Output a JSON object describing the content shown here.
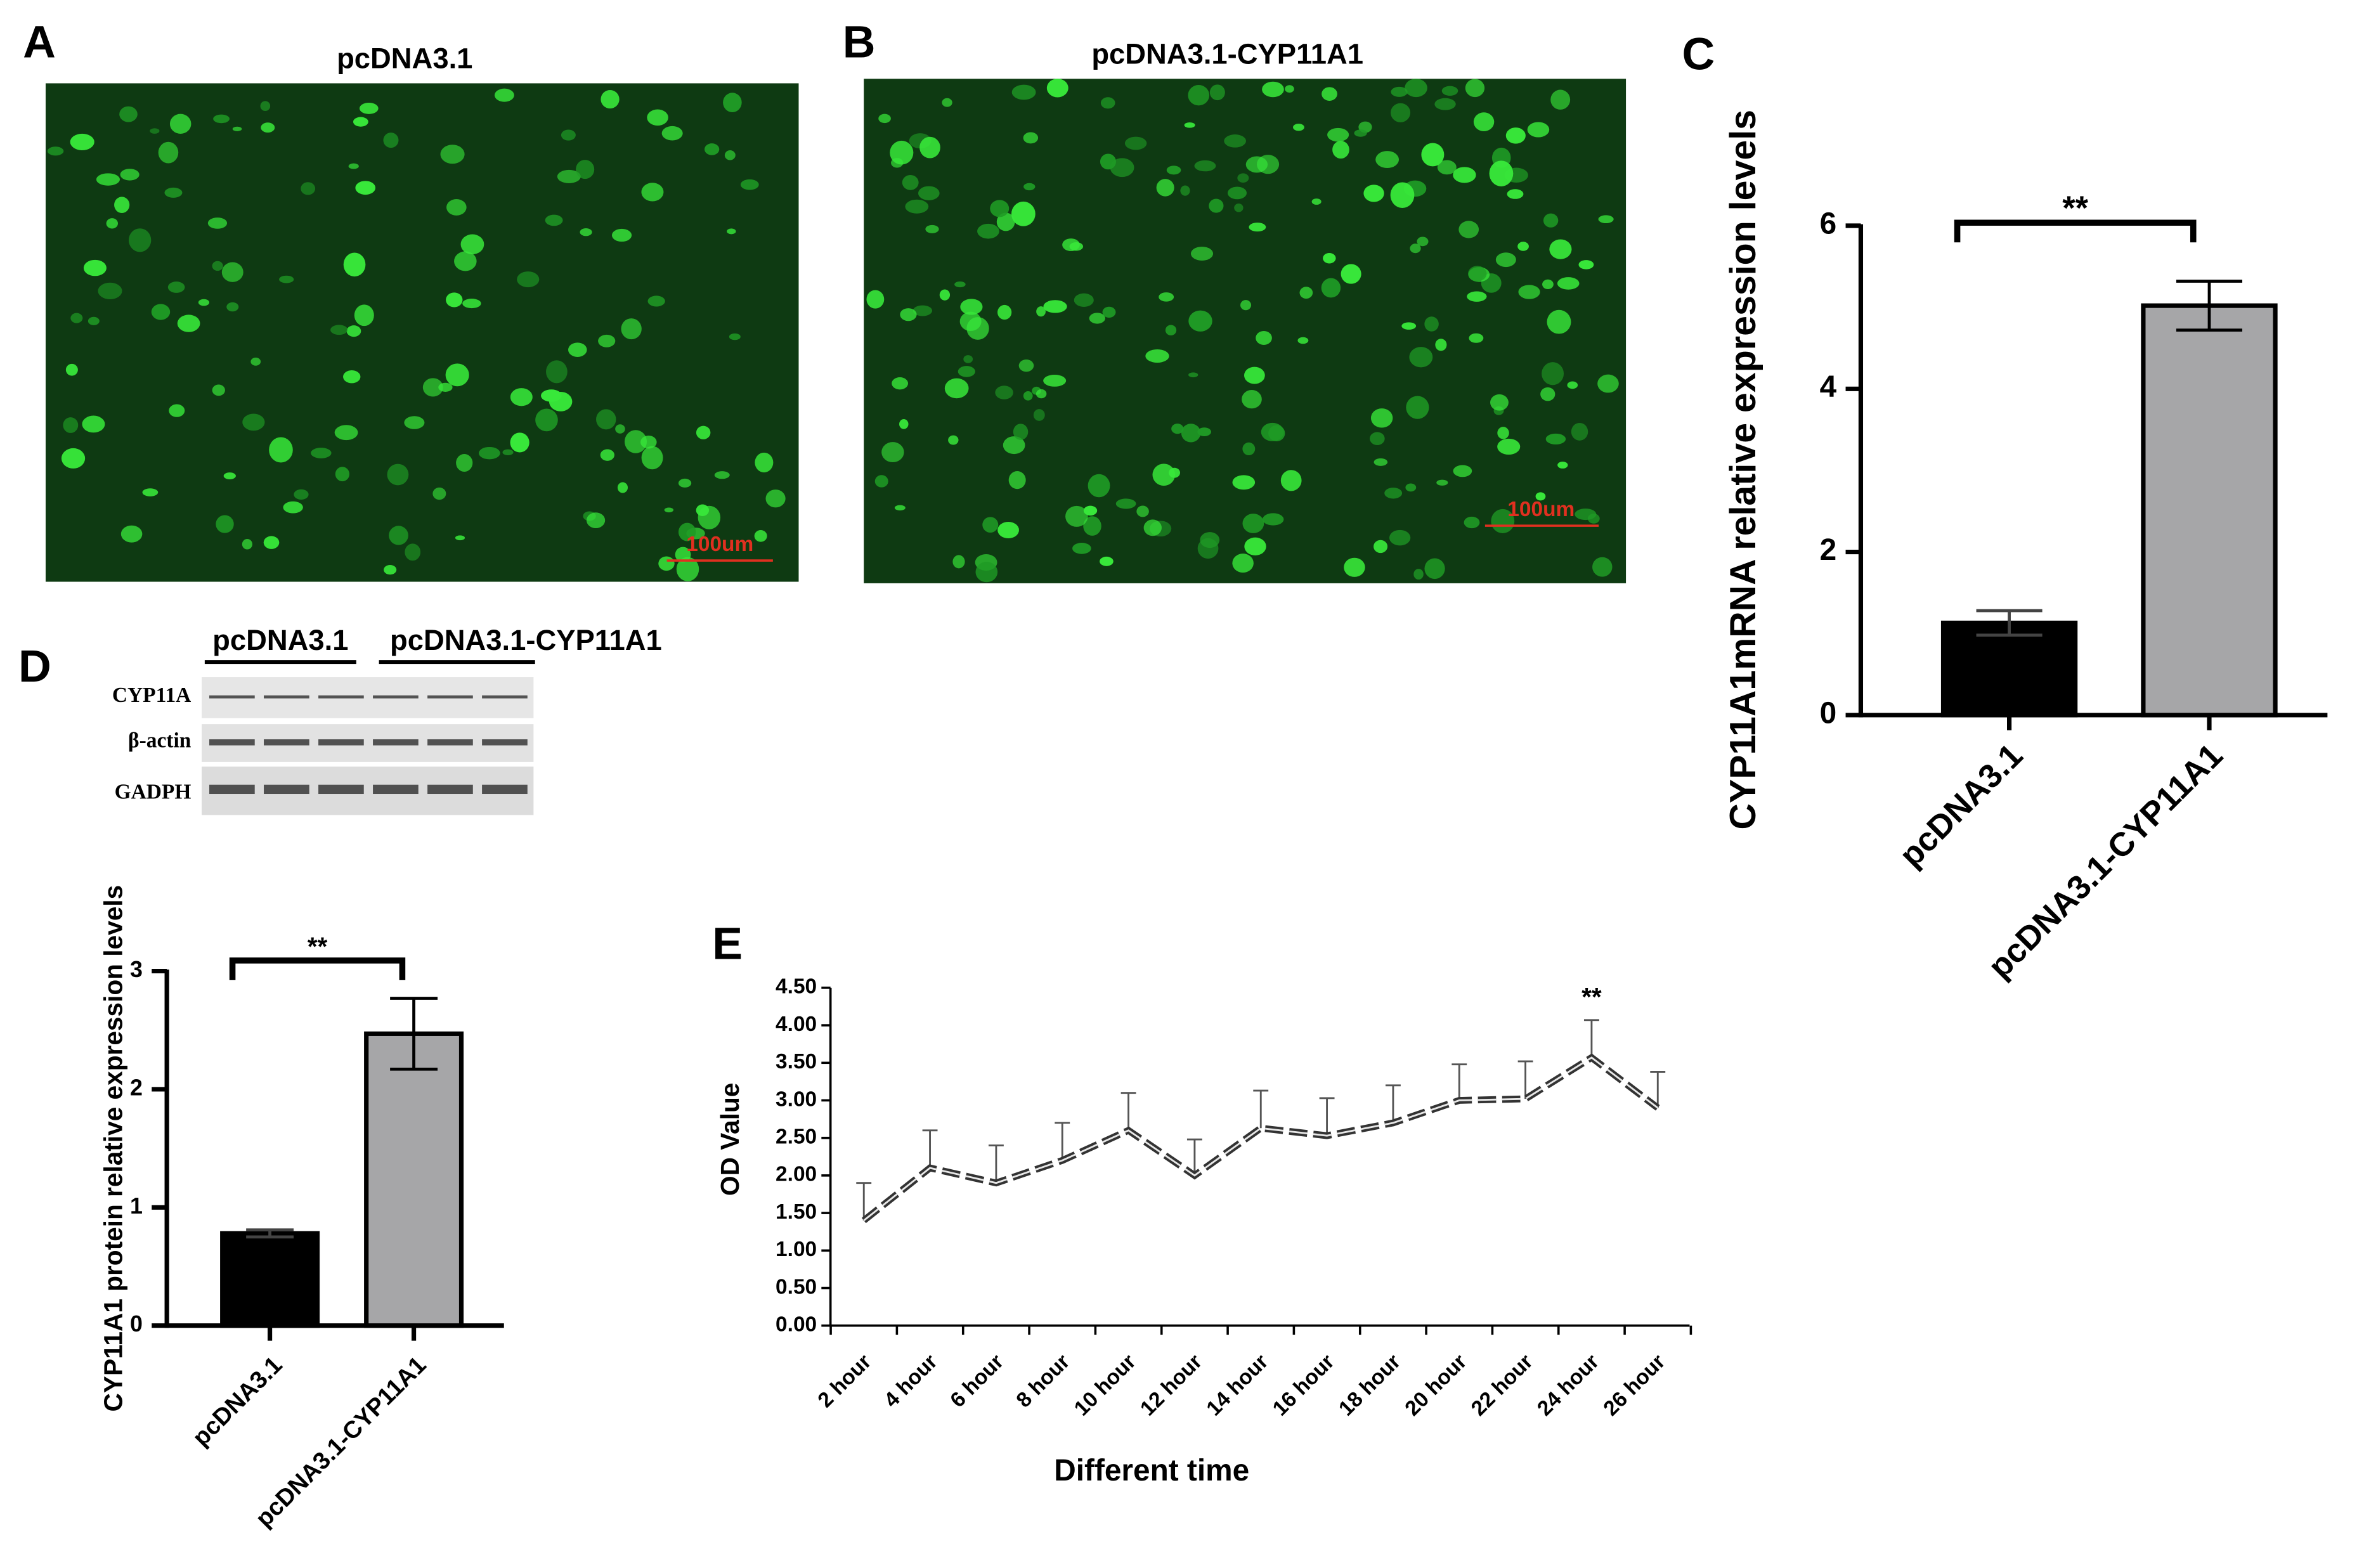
{
  "panels": {
    "A": {
      "label": "A",
      "title": "pcDNA3.1",
      "scale_bar": "100um"
    },
    "B": {
      "label": "B",
      "title": "pcDNA3.1-CYP11A1",
      "scale_bar": "100um"
    },
    "C": {
      "label": "C"
    },
    "D": {
      "label": "D",
      "groups": [
        "pcDNA3.1",
        "pcDNA3.1-CYP11A1"
      ],
      "bands": [
        "CYP11A",
        "β-actin",
        "GADPH"
      ]
    },
    "E": {
      "label": "E"
    }
  },
  "chart_data": [
    {
      "type": "bar",
      "categories": [
        "pcDNA3.1",
        "pcDNA3.1-CYP11A1"
      ],
      "values": [
        1.13,
        5.02
      ],
      "errors": [
        0.15,
        0.3
      ],
      "colors": [
        "#000000",
        "#a6a6a8"
      ],
      "ylim": [
        0,
        6
      ],
      "yticks": [
        0,
        2,
        4,
        6
      ],
      "y_label": "CYP11A1mRNA relative expression levels",
      "annotation": "**"
    },
    {
      "type": "bar",
      "categories": [
        "pcDNA3.1",
        "pcDNA3.1-CYP11A1"
      ],
      "values": [
        0.78,
        2.47
      ],
      "errors": [
        0.03,
        0.3
      ],
      "colors": [
        "#000000",
        "#a6a6a8"
      ],
      "ylim": [
        0,
        3
      ],
      "yticks": [
        0,
        1,
        2,
        3
      ],
      "y_label": "CYP11A1 protein relative expression levels",
      "annotation": "**"
    },
    {
      "type": "line",
      "categories": [
        "2 hour",
        "4 hour",
        "6 hour",
        "8 hour",
        "10 hour",
        "12 hour",
        "14 hour",
        "16 hour",
        "18 hour",
        "20 hour",
        "22 hour",
        "24 hour",
        "26 hour"
      ],
      "values": [
        1.4,
        2.1,
        1.9,
        2.2,
        2.6,
        2.0,
        2.63,
        2.53,
        2.7,
        3.0,
        3.02,
        3.57,
        2.9
      ],
      "errors": [
        0.5,
        0.5,
        0.5,
        0.5,
        0.5,
        0.48,
        0.5,
        0.5,
        0.5,
        0.48,
        0.5,
        0.5,
        0.48
      ],
      "significance": [
        null,
        null,
        null,
        null,
        null,
        null,
        null,
        null,
        null,
        null,
        null,
        "**",
        null
      ],
      "color": "#333333",
      "ylim": [
        0,
        4.5
      ],
      "yticks": [
        {
          "value": 0,
          "label": "0.00"
        },
        {
          "value": 0.5,
          "label": "0.50"
        },
        {
          "value": 1,
          "label": "1.00"
        },
        {
          "value": 1.5,
          "label": "1.50"
        },
        {
          "value": 2,
          "label": "2.00"
        },
        {
          "value": 2.5,
          "label": "2.50"
        },
        {
          "value": 3,
          "label": "3.00"
        },
        {
          "value": 3.5,
          "label": "3.50"
        },
        {
          "value": 4,
          "label": "4.00"
        },
        {
          "value": 4.5,
          "label": "4.50"
        }
      ],
      "x_label": "Different time",
      "y_label": "OD Value"
    }
  ]
}
